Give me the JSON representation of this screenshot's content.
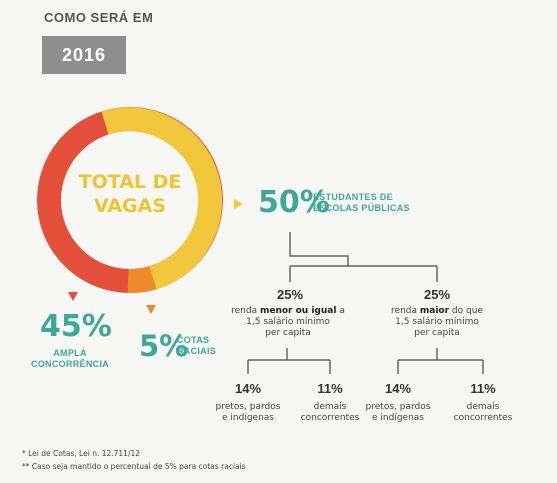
{
  "header": {
    "title": "COMO SERÁ EM",
    "year": "2016"
  },
  "donut": {
    "label_line1": "TOTAL DE",
    "label_line2": "VAGAS",
    "colors": {
      "ampla": "#e34f3a",
      "escolas": "#f2c73c",
      "cotas": "#ee8a2e"
    }
  },
  "estudantes": {
    "percent": "50%",
    "label_line1": "ESTUDANTES DE",
    "label_line2": "ESCOLAS PÚBLICAS"
  },
  "ampla": {
    "percent": "45%",
    "label_line1": "AMPLA",
    "label_line2": "CONCORRÊNCIA"
  },
  "cotas": {
    "percent": "5%",
    "label_line1": "COTAS",
    "label_line2": "RACIAIS"
  },
  "renda_menor": {
    "percent": "25%",
    "pre": "renda ",
    "bold": "menor ou igual",
    "post": " a",
    "line2": "1,5 salário mínimo",
    "line3": "per capita"
  },
  "renda_maior": {
    "percent": "25%",
    "pre": "renda ",
    "bold": "maior",
    "post": " do que",
    "line2": "1,5 salário mínimo",
    "line3": "per capita"
  },
  "leaves": [
    {
      "percent": "14%",
      "line1": "pretos, pardos",
      "line2": "e indígenas"
    },
    {
      "percent": "11%",
      "line1": "demais",
      "line2": "concorrentes"
    },
    {
      "percent": "14%",
      "line1": "pretos, pardos",
      "line2": "e indígenas"
    },
    {
      "percent": "11%",
      "line1": "demais",
      "line2": "concorrentes"
    }
  ],
  "footnotes": {
    "note1": "* Lei de Cotas, Lei n. 12.711/12",
    "note2": "** Caso seja mantido o percentual de 5% para cotas raciais"
  }
}
